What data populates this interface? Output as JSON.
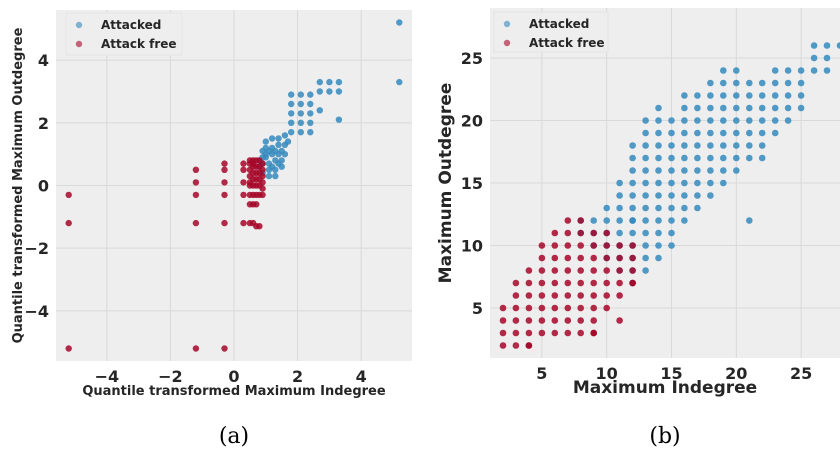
{
  "colors": {
    "attacked": "#348ABD",
    "attack_free": "#A60628",
    "plot_bg": "#EEEEEE",
    "grid": "#D9D9D9"
  },
  "chart_data": [
    {
      "type": "scatter",
      "caption": "(a)",
      "xlabel": "Quantile transformed Maximum Indegree",
      "ylabel": "Quantile transformed Maximum Outdegree",
      "xlim": [
        -5.6,
        5.6
      ],
      "ylim": [
        -5.6,
        5.6
      ],
      "xticks": [
        -4,
        -2,
        0,
        2,
        4
      ],
      "yticks": [
        -4,
        -2,
        0,
        2,
        4
      ],
      "xtick_labels": [
        "−4",
        "−2",
        "0",
        "2",
        "4"
      ],
      "ytick_labels": [
        "−4",
        "−2",
        "0",
        "2",
        "4"
      ],
      "grid": true,
      "legend_position": "top-left",
      "series": [
        {
          "name": "Attacked",
          "x": [
            5.2,
            5.2,
            3.3,
            3.0,
            2.7,
            3.3,
            3.0,
            2.7,
            2.4,
            2.1,
            1.8,
            2.4,
            2.1,
            1.8,
            2.7,
            2.4,
            2.1,
            1.8,
            2.4,
            2.1,
            1.8,
            3.3,
            2.4,
            2.1,
            1.8,
            1.6,
            1.4,
            1.2,
            1.0,
            1.6,
            1.4,
            1.2,
            1.0,
            0.9,
            1.6,
            1.4,
            1.2,
            1.0,
            0.9,
            0.8,
            1.5,
            1.3,
            1.1,
            0.9,
            0.8,
            1.5,
            1.3,
            1.1,
            0.9,
            1.3,
            1.1,
            1.5,
            1.3,
            1.1,
            1.0,
            1.2,
            1.4,
            1.7
          ],
          "y": [
            5.2,
            3.3,
            3.3,
            3.3,
            3.3,
            3.0,
            3.0,
            3.0,
            2.9,
            2.9,
            2.9,
            2.6,
            2.6,
            2.6,
            2.4,
            2.3,
            2.3,
            2.3,
            2.0,
            2.0,
            2.0,
            2.1,
            1.7,
            1.7,
            1.7,
            1.6,
            1.5,
            1.5,
            1.4,
            1.3,
            1.3,
            1.2,
            1.2,
            1.1,
            1.0,
            1.0,
            1.0,
            0.9,
            0.9,
            0.8,
            0.8,
            0.8,
            0.7,
            0.7,
            0.6,
            0.6,
            0.5,
            0.5,
            0.4,
            0.3,
            0.3,
            1.1,
            1.1,
            1.1,
            1.0,
            0.6,
            0.7,
            1.4
          ]
        },
        {
          "name": "Attack free",
          "x": [
            -5.2,
            -5.2,
            -5.2,
            -1.2,
            -1.2,
            -1.2,
            -1.2,
            -1.2,
            -0.3,
            -0.3,
            -0.3,
            -0.3,
            -0.3,
            -0.3,
            0.3,
            0.3,
            0.3,
            0.3,
            0.3,
            0.5,
            0.5,
            0.5,
            0.5,
            0.5,
            0.5,
            0.5,
            0.5,
            0.6,
            0.6,
            0.6,
            0.6,
            0.6,
            0.6,
            0.6,
            0.6,
            0.7,
            0.7,
            0.7,
            0.7,
            0.7,
            0.7,
            0.7,
            0.8,
            0.8,
            0.8,
            0.8,
            0.8,
            0.8,
            0.8,
            0.9,
            0.9,
            0.9,
            0.9,
            0.9,
            0.9,
            0.5,
            0.6,
            0.7
          ],
          "y": [
            -0.3,
            -1.2,
            -5.2,
            0.5,
            0.1,
            -0.3,
            -1.2,
            -5.2,
            0.5,
            0.1,
            -0.3,
            -1.2,
            -5.2,
            0.7,
            0.5,
            0.1,
            -0.3,
            0.7,
            -1.2,
            0.8,
            0.7,
            0.5,
            0.3,
            0.1,
            0.0,
            -0.3,
            -1.2,
            0.8,
            0.7,
            0.6,
            0.4,
            0.2,
            0.0,
            -0.3,
            -1.2,
            0.8,
            0.6,
            0.4,
            0.2,
            0.0,
            -0.3,
            -1.3,
            0.8,
            0.6,
            0.4,
            0.2,
            0.0,
            -0.3,
            -1.3,
            0.7,
            0.5,
            0.3,
            0.1,
            -0.1,
            -0.3,
            -0.6,
            -0.6,
            -0.6
          ]
        }
      ]
    },
    {
      "type": "scatter",
      "caption": "(b)",
      "xlabel": "Maximum Indegree",
      "ylabel": "Maximum Outdegree",
      "xlim": [
        1,
        28
      ],
      "ylim": [
        1,
        29
      ],
      "xticks": [
        5,
        10,
        15,
        20,
        25
      ],
      "yticks": [
        5,
        10,
        15,
        20,
        25
      ],
      "xtick_labels": [
        "5",
        "10",
        "15",
        "20",
        "25"
      ],
      "ytick_labels": [
        "5",
        "10",
        "15",
        "20",
        "25"
      ],
      "grid": true,
      "legend_position": "top-left",
      "series": [
        {
          "name": "Attacked",
          "x": [
            9,
            10,
            10,
            10,
            10,
            11,
            11,
            11,
            11,
            11,
            11,
            11,
            11,
            12,
            12,
            12,
            12,
            12,
            12,
            12,
            12,
            12,
            12,
            12,
            12,
            12,
            13,
            13,
            13,
            13,
            13,
            13,
            13,
            13,
            13,
            13,
            13,
            13,
            13,
            14,
            14,
            14,
            14,
            14,
            14,
            14,
            14,
            14,
            14,
            14,
            14,
            14,
            15,
            15,
            15,
            15,
            15,
            15,
            15,
            15,
            15,
            15,
            15,
            16,
            16,
            16,
            16,
            16,
            16,
            16,
            16,
            16,
            16,
            16,
            17,
            17,
            17,
            17,
            17,
            17,
            17,
            17,
            17,
            17,
            18,
            18,
            18,
            18,
            18,
            18,
            18,
            18,
            18,
            18,
            19,
            19,
            19,
            19,
            19,
            19,
            19,
            19,
            19,
            19,
            20,
            20,
            20,
            20,
            20,
            20,
            20,
            20,
            20,
            21,
            21,
            21,
            21,
            21,
            21,
            21,
            21,
            22,
            22,
            22,
            22,
            22,
            22,
            22,
            23,
            23,
            23,
            23,
            23,
            23,
            24,
            24,
            24,
            24,
            24,
            25,
            25,
            25,
            25,
            26,
            26,
            26,
            27,
            27,
            27,
            28,
            9,
            10,
            8,
            9,
            8
          ],
          "y": [
            10,
            10,
            11,
            12,
            13,
            8,
            9,
            10,
            11,
            12,
            13,
            14,
            15,
            7,
            8,
            9,
            10,
            11,
            12,
            13,
            14,
            15,
            16,
            17,
            18,
            12,
            8,
            9,
            10,
            11,
            12,
            13,
            14,
            15,
            16,
            17,
            18,
            19,
            20,
            9,
            10,
            11,
            12,
            13,
            14,
            15,
            16,
            17,
            18,
            19,
            20,
            21,
            10,
            11,
            12,
            13,
            14,
            15,
            16,
            17,
            18,
            19,
            20,
            12,
            13,
            14,
            15,
            16,
            17,
            18,
            19,
            20,
            21,
            22,
            13,
            14,
            15,
            16,
            17,
            18,
            19,
            20,
            21,
            22,
            14,
            15,
            16,
            17,
            18,
            19,
            20,
            21,
            22,
            23,
            15,
            16,
            17,
            18,
            19,
            20,
            21,
            22,
            23,
            24,
            16,
            17,
            18,
            19,
            20,
            21,
            22,
            23,
            24,
            12,
            17,
            18,
            19,
            20,
            21,
            22,
            23,
            17,
            18,
            19,
            20,
            21,
            22,
            23,
            19,
            20,
            21,
            22,
            23,
            24,
            20,
            21,
            22,
            23,
            24,
            21,
            22,
            23,
            24,
            24,
            25,
            26,
            24,
            25,
            26,
            26,
            11,
            9,
            11,
            12,
            12
          ]
        },
        {
          "name": "Attack free",
          "x": [
            2,
            2,
            2,
            2,
            3,
            3,
            3,
            3,
            3,
            3,
            4,
            4,
            4,
            4,
            4,
            4,
            4,
            5,
            5,
            5,
            5,
            5,
            5,
            5,
            5,
            6,
            6,
            6,
            6,
            6,
            6,
            6,
            6,
            6,
            7,
            7,
            7,
            7,
            7,
            7,
            7,
            7,
            7,
            7,
            8,
            8,
            8,
            8,
            8,
            8,
            8,
            8,
            8,
            8,
            9,
            9,
            9,
            9,
            9,
            9,
            9,
            9,
            9,
            10,
            10,
            10,
            10,
            10,
            10,
            11,
            11,
            11,
            11,
            11,
            12,
            12,
            12,
            12,
            4,
            9,
            10,
            11,
            12
          ],
          "y": [
            2,
            3,
            4,
            5,
            2,
            3,
            4,
            5,
            6,
            7,
            2,
            3,
            4,
            5,
            6,
            7,
            8,
            3,
            4,
            5,
            6,
            7,
            8,
            9,
            10,
            3,
            4,
            5,
            6,
            7,
            8,
            9,
            10,
            11,
            3,
            4,
            5,
            6,
            7,
            8,
            9,
            10,
            11,
            12,
            4,
            5,
            6,
            7,
            8,
            9,
            10,
            11,
            12,
            3,
            5,
            6,
            7,
            8,
            9,
            10,
            11,
            3,
            4,
            7,
            8,
            9,
            10,
            11,
            5,
            7,
            8,
            9,
            10,
            6,
            7,
            8,
            9,
            10,
            2,
            3,
            6,
            4,
            7
          ]
        }
      ]
    }
  ]
}
